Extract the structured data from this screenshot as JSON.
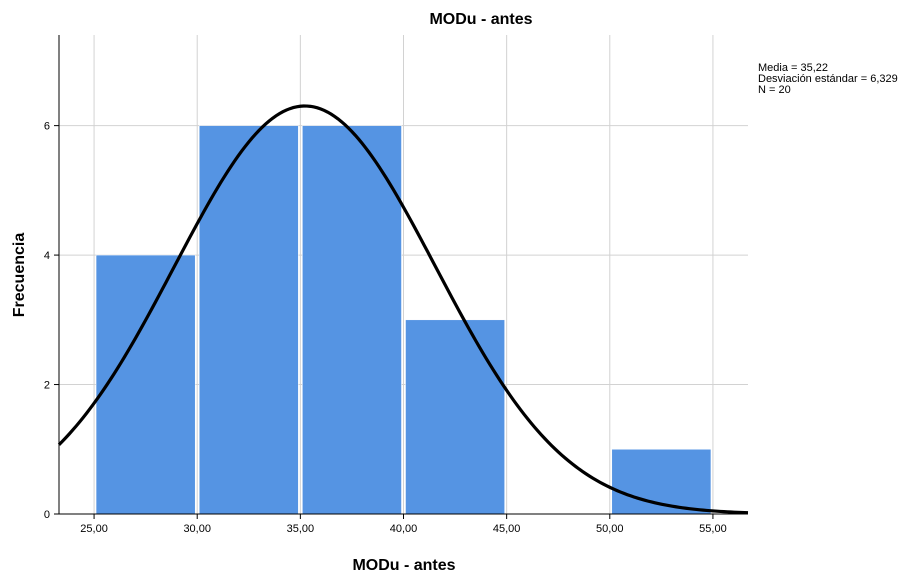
{
  "chart_data": {
    "type": "bar",
    "title": "MODu - antes",
    "xlabel": "MODu - antes",
    "ylabel": "Frecuencia",
    "bins": [
      {
        "start": 25,
        "end": 30,
        "value": 4
      },
      {
        "start": 30,
        "end": 35,
        "value": 6
      },
      {
        "start": 35,
        "end": 40,
        "value": 6
      },
      {
        "start": 40,
        "end": 45,
        "value": 3
      },
      {
        "start": 45,
        "end": 50,
        "value": 0
      },
      {
        "start": 50,
        "end": 55,
        "value": 1
      }
    ],
    "x_ticks": [
      "25,00",
      "30,00",
      "35,00",
      "40,00",
      "45,00",
      "50,00",
      "55,00"
    ],
    "x_tick_values": [
      25,
      30,
      35,
      40,
      45,
      50,
      55
    ],
    "y_ticks": [
      "0",
      "2",
      "4",
      "6"
    ],
    "y_tick_values": [
      0,
      2,
      4,
      6
    ],
    "xlim": [
      23.3,
      56.7
    ],
    "ylim": [
      0,
      7.4
    ],
    "grid": true,
    "normal_curve": {
      "mean": 35.22,
      "sd": 6.329,
      "n": 20,
      "bin_width": 5
    },
    "stats": [
      "Media = 35,22",
      "Desviación estándar = 6,329",
      "N = 20"
    ],
    "colors": {
      "bar": "#5594e3",
      "curve": "#000000",
      "grid": "#d2d2d2"
    }
  }
}
